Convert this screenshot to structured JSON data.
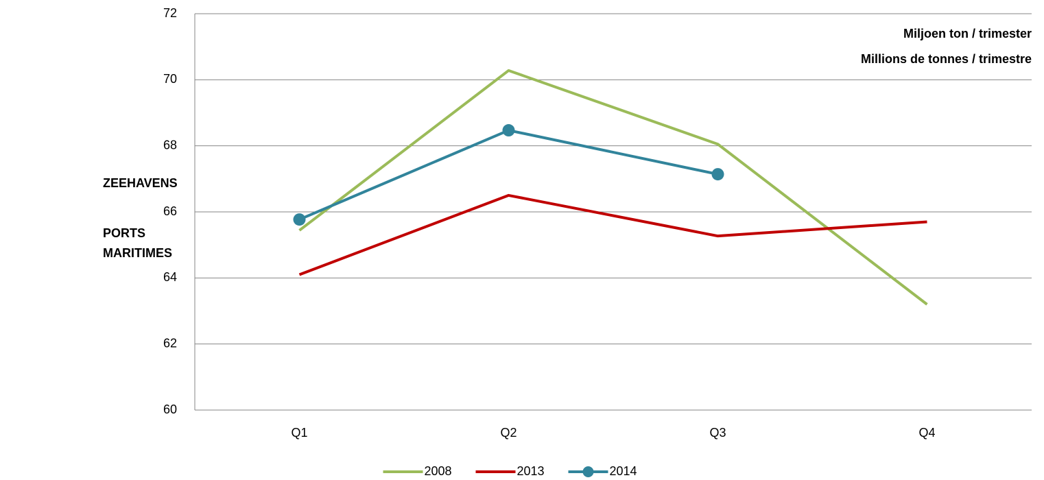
{
  "chart_data": {
    "type": "line",
    "unit_labels": [
      "Miljoen ton / trimester",
      "Millions de tonnes / trimestre"
    ],
    "side_labels": [
      "ZEEHAVENS",
      "PORTS",
      "MARITIMES"
    ],
    "categories": [
      "Q1",
      "Q2",
      "Q3",
      "Q4"
    ],
    "series": [
      {
        "name": "2008",
        "color": "#9bbb59",
        "values": [
          65.44,
          70.28,
          68.05,
          63.2
        ],
        "markers": false
      },
      {
        "name": "2013",
        "color": "#c00000",
        "values": [
          64.1,
          66.5,
          65.27,
          65.7
        ],
        "markers": false
      },
      {
        "name": "2014",
        "color": "#31849b",
        "values": [
          65.77,
          68.47,
          67.14,
          null
        ],
        "markers": true
      }
    ],
    "ylim": [
      60,
      72
    ],
    "yticks": [
      60,
      62,
      64,
      66,
      68,
      70,
      72
    ],
    "grid": true,
    "legend": "bottom"
  }
}
